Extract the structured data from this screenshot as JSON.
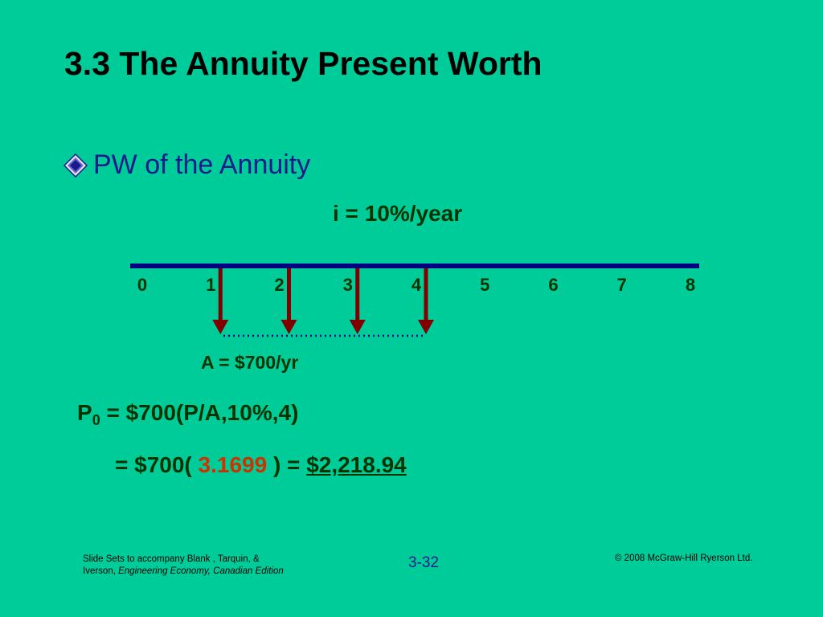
{
  "slide": {
    "title": "3.3 The Annuity Present Worth",
    "bullet": "PW of the Annuity"
  },
  "diagram": {
    "interest_rate": "i = 10%/year",
    "time_labels": [
      "0",
      "1",
      "2",
      "3",
      "4",
      "5",
      "6",
      "7",
      "8"
    ],
    "cash_flow_periods": [
      1,
      2,
      3,
      4
    ],
    "cash_flow_direction": "down",
    "annuity_label": "A = $700/yr",
    "colors": {
      "timeline": "#000080",
      "arrows": "#800000",
      "dotted_line": "#000080",
      "labels": "#003300"
    }
  },
  "equations": {
    "line1_symbol": "P",
    "line1_subscript": "0",
    "line1_rest": " = $700(P/A,10%,4)",
    "line2_prefix": "= $700( ",
    "line2_factor": "3.1699",
    "line2_mid": "  ) = ",
    "line2_result": "$2,218.94"
  },
  "footer": {
    "left_line1": "Slide Sets  to accompany Blank , Tarquin, &",
    "left_line2_prefix": "Iverson, ",
    "left_line2_italic": "Engineering Economy, Canadian Edition",
    "center": "3-32",
    "right": "© 2008 McGraw-Hill Ryerson Ltd."
  },
  "theme": {
    "background": "#00CC99",
    "title_color": "#000000",
    "bullet_color": "#1A1A8C",
    "factor_color": "#CC3300"
  }
}
